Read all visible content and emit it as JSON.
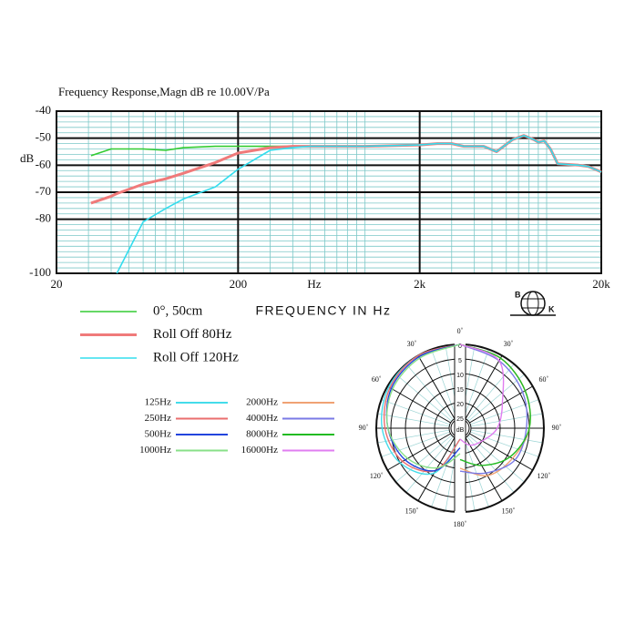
{
  "chart_data": [
    {
      "type": "line",
      "title": "Frequency  Response,Magn  dB re 10.00V/Pa",
      "y_label": "dB",
      "x_label": "FREQUENCY IN Hz",
      "x_unit": "Hz",
      "log_x": true,
      "grid": true,
      "xlim": [
        20,
        20000
      ],
      "xticks": [
        20,
        200,
        {
          "value": 2000,
          "label": "2k"
        },
        {
          "value": 20000,
          "label": "20k"
        }
      ],
      "ylim": [
        -100,
        -40
      ],
      "yticks": [
        -40,
        -50,
        -60,
        -70,
        -80,
        -100
      ],
      "x": [
        31,
        40,
        43,
        60,
        80,
        100,
        150,
        200,
        300,
        400,
        500,
        700,
        1000,
        2000,
        2500,
        3000,
        3500,
        4500,
        5300,
        6500,
        7500,
        8500,
        9000,
        9700,
        10500,
        11500,
        15000,
        17000,
        20000
      ],
      "series": [
        {
          "name": "0°, 50cm",
          "color": "#33cc33",
          "values": [
            -56.5,
            -54,
            -54,
            -54,
            -54.5,
            -53.5,
            -53,
            -53,
            -53,
            -53,
            -53,
            -53,
            -53,
            -52.5,
            -52,
            -52,
            -53,
            -53,
            -55,
            -50.5,
            -49,
            -50.5,
            -51.5,
            -51,
            -54,
            -59.5,
            -60,
            -60.5,
            -62.5
          ]
        },
        {
          "name": "Roll Off  80Hz",
          "color": "#f07a7a",
          "values": [
            -74,
            -71.5,
            -70.5,
            -67,
            -65,
            -63,
            -59,
            -55.5,
            -53.5,
            -53,
            -53,
            -53,
            -53,
            -52.5,
            -52,
            -52,
            -53,
            -53,
            -55,
            -50.5,
            -49,
            -50.5,
            -51.5,
            -51,
            -54,
            -59.5,
            -60,
            -60.5,
            -62.5
          ]
        },
        {
          "name": "Roll Off  120Hz",
          "color": "#33ddee",
          "values": [
            null,
            null,
            -100,
            -81,
            -76,
            -72.5,
            -68,
            -61.5,
            -54.5,
            -53.5,
            -53,
            -53,
            -53,
            -52.5,
            -52,
            -52,
            -53,
            -53,
            -55,
            -50.5,
            -49,
            -50.5,
            -51.5,
            -51,
            -54,
            -59.5,
            -60,
            -60.5,
            -62.5
          ]
        }
      ]
    },
    {
      "type": "polar",
      "r_unit": "dB",
      "rlim": [
        0,
        25
      ],
      "rticks": [
        0,
        5,
        10,
        15,
        20,
        25
      ],
      "angles": [
        0,
        30,
        60,
        90,
        120,
        150,
        180
      ],
      "angle_ticks": [
        {
          "value": 0,
          "label": "0˚"
        },
        {
          "value": 30,
          "label": "30˚"
        },
        {
          "value": 60,
          "label": "60˚"
        },
        {
          "value": 90,
          "label": "90˚"
        },
        {
          "value": 120,
          "label": "120˚"
        },
        {
          "value": 150,
          "label": "150˚"
        },
        {
          "value": 180,
          "label": "180˚"
        }
      ],
      "series": [
        {
          "name": "125Hz",
          "color": "#44dcea",
          "side": "left",
          "values": [
            0,
            0,
            0.5,
            2,
            5,
            11,
            25
          ]
        },
        {
          "name": "250Hz",
          "color": "#ea6e6e",
          "side": "left",
          "values": [
            0,
            0,
            1,
            3,
            6,
            12,
            25
          ]
        },
        {
          "name": "500Hz",
          "color": "#2244dd",
          "side": "left",
          "values": [
            0,
            0.5,
            1.5,
            4,
            7,
            12,
            22
          ]
        },
        {
          "name": "1000Hz",
          "color": "#88e088",
          "side": "left",
          "values": [
            0,
            1,
            2,
            4,
            8,
            13,
            20
          ]
        },
        {
          "name": "2000Hz",
          "color": "#f0a274",
          "side": "right",
          "values": [
            0,
            1,
            3,
            5,
            8,
            10,
            15
          ]
        },
        {
          "name": "4000Hz",
          "color": "#7a7ae6",
          "side": "right",
          "values": [
            0,
            2,
            4,
            6,
            7,
            11,
            14
          ]
        },
        {
          "name": "8000Hz",
          "color": "#22bb22",
          "side": "right",
          "values": [
            0,
            1,
            3,
            5,
            9,
            14,
            18
          ]
        },
        {
          "name": "16000Hz",
          "color": "#e07ef0",
          "side": "right",
          "values": [
            0,
            2,
            12,
            16,
            20,
            22,
            25
          ]
        }
      ]
    }
  ],
  "logo": [
    "B",
    "K"
  ]
}
